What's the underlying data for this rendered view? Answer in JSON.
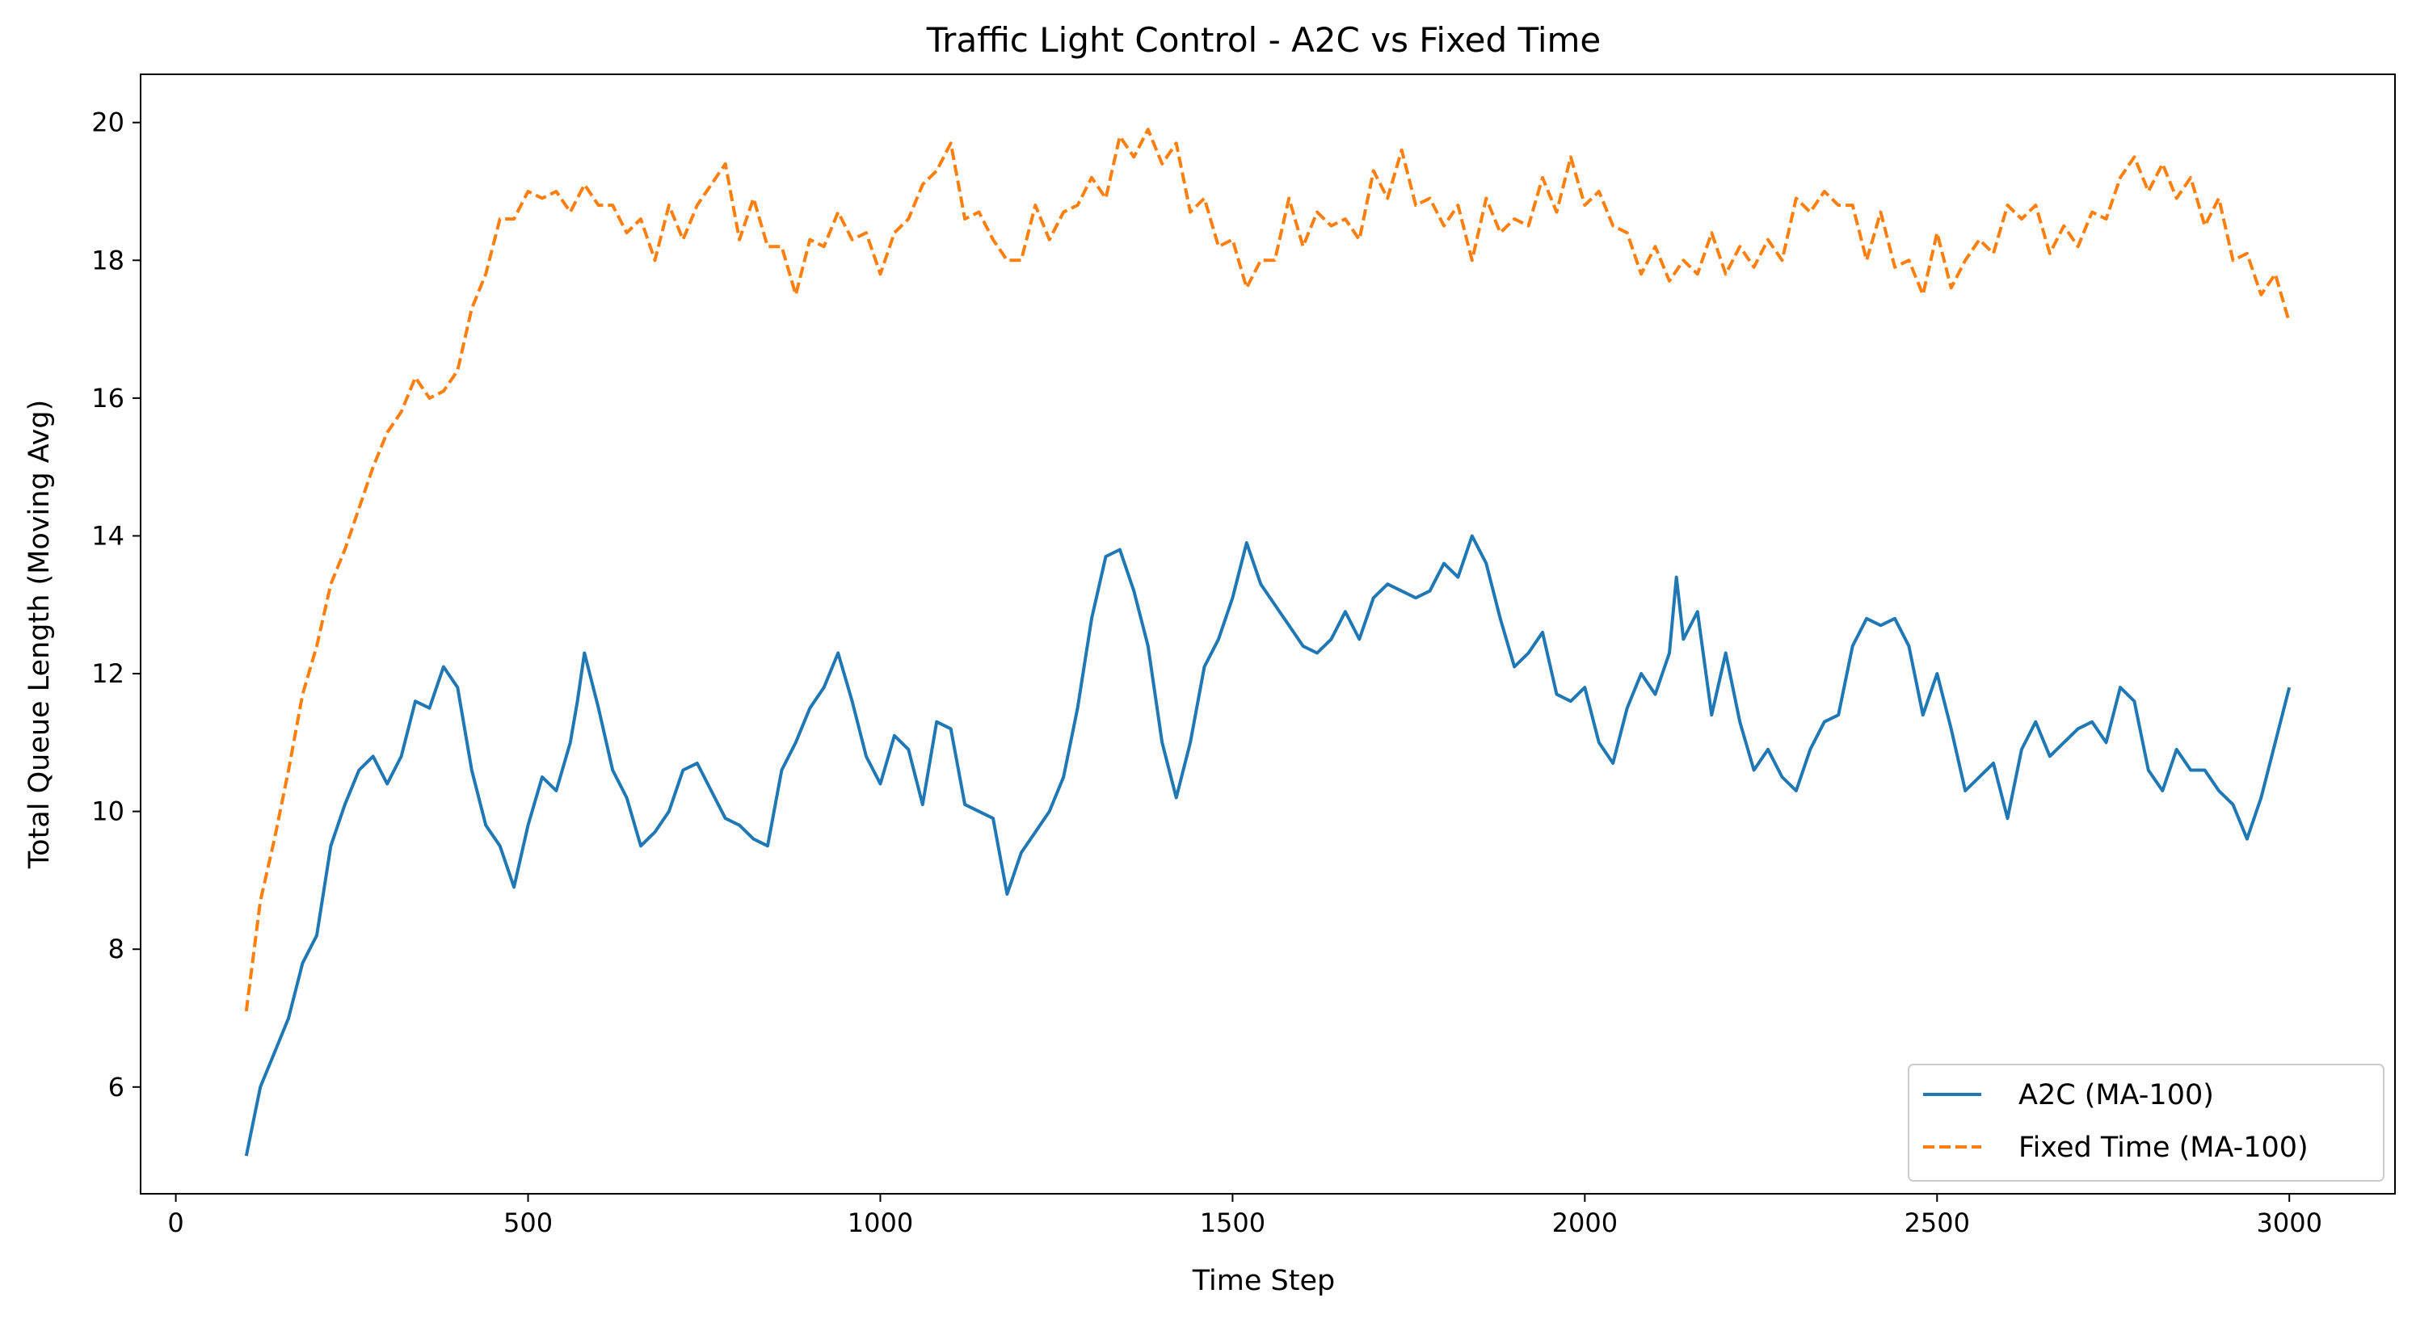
{
  "chart_data": {
    "type": "line",
    "title": "Traffic Light Control - A2C vs Fixed Time",
    "xlabel": "Time Step",
    "ylabel": "Total Queue Length (Moving Avg)",
    "xlim": [
      -50,
      3150
    ],
    "ylim": [
      4.45,
      20.7
    ],
    "xticks": [
      0,
      500,
      1000,
      1500,
      2000,
      2500,
      3000
    ],
    "yticks": [
      6,
      8,
      10,
      12,
      14,
      16,
      18,
      20
    ],
    "grid": false,
    "legend_position": "lower-right",
    "series": [
      {
        "name": "A2C (MA-100)",
        "color": "#1f77b4",
        "style": "solid",
        "points": [
          [
            100,
            5.0
          ],
          [
            120,
            6.0
          ],
          [
            140,
            6.5
          ],
          [
            160,
            7.0
          ],
          [
            180,
            7.8
          ],
          [
            200,
            8.2
          ],
          [
            220,
            9.5
          ],
          [
            240,
            10.1
          ],
          [
            260,
            10.6
          ],
          [
            280,
            10.8
          ],
          [
            300,
            10.4
          ],
          [
            320,
            10.8
          ],
          [
            340,
            11.6
          ],
          [
            360,
            11.5
          ],
          [
            380,
            12.1
          ],
          [
            400,
            11.8
          ],
          [
            420,
            10.6
          ],
          [
            440,
            9.8
          ],
          [
            460,
            9.5
          ],
          [
            480,
            8.9
          ],
          [
            500,
            9.8
          ],
          [
            520,
            10.5
          ],
          [
            540,
            10.3
          ],
          [
            560,
            11.0
          ],
          [
            570,
            11.6
          ],
          [
            580,
            12.3
          ],
          [
            600,
            11.5
          ],
          [
            620,
            10.6
          ],
          [
            640,
            10.2
          ],
          [
            660,
            9.5
          ],
          [
            680,
            9.7
          ],
          [
            700,
            10.0
          ],
          [
            720,
            10.6
          ],
          [
            740,
            10.7
          ],
          [
            760,
            10.3
          ],
          [
            780,
            9.9
          ],
          [
            800,
            9.8
          ],
          [
            820,
            9.6
          ],
          [
            840,
            9.5
          ],
          [
            860,
            10.6
          ],
          [
            880,
            11.0
          ],
          [
            900,
            11.5
          ],
          [
            920,
            11.8
          ],
          [
            940,
            12.3
          ],
          [
            960,
            11.6
          ],
          [
            980,
            10.8
          ],
          [
            1000,
            10.4
          ],
          [
            1020,
            11.1
          ],
          [
            1040,
            10.9
          ],
          [
            1060,
            10.1
          ],
          [
            1080,
            11.3
          ],
          [
            1100,
            11.2
          ],
          [
            1120,
            10.1
          ],
          [
            1140,
            10.0
          ],
          [
            1160,
            9.9
          ],
          [
            1180,
            8.8
          ],
          [
            1200,
            9.4
          ],
          [
            1220,
            9.7
          ],
          [
            1240,
            10.0
          ],
          [
            1260,
            10.5
          ],
          [
            1280,
            11.5
          ],
          [
            1300,
            12.8
          ],
          [
            1320,
            13.7
          ],
          [
            1340,
            13.8
          ],
          [
            1360,
            13.2
          ],
          [
            1380,
            12.4
          ],
          [
            1400,
            11.0
          ],
          [
            1420,
            10.2
          ],
          [
            1440,
            11.0
          ],
          [
            1460,
            12.1
          ],
          [
            1480,
            12.5
          ],
          [
            1500,
            13.1
          ],
          [
            1520,
            13.9
          ],
          [
            1540,
            13.3
          ],
          [
            1560,
            13.0
          ],
          [
            1580,
            12.7
          ],
          [
            1600,
            12.4
          ],
          [
            1620,
            12.3
          ],
          [
            1640,
            12.5
          ],
          [
            1660,
            12.9
          ],
          [
            1680,
            12.5
          ],
          [
            1700,
            13.1
          ],
          [
            1720,
            13.3
          ],
          [
            1740,
            13.2
          ],
          [
            1760,
            13.1
          ],
          [
            1780,
            13.2
          ],
          [
            1800,
            13.6
          ],
          [
            1820,
            13.4
          ],
          [
            1840,
            14.0
          ],
          [
            1860,
            13.6
          ],
          [
            1880,
            12.8
          ],
          [
            1900,
            12.1
          ],
          [
            1920,
            12.3
          ],
          [
            1940,
            12.6
          ],
          [
            1960,
            11.7
          ],
          [
            1980,
            11.6
          ],
          [
            2000,
            11.8
          ],
          [
            2020,
            11.0
          ],
          [
            2040,
            10.7
          ],
          [
            2060,
            11.5
          ],
          [
            2080,
            12.0
          ],
          [
            2100,
            11.7
          ],
          [
            2120,
            12.3
          ],
          [
            2130,
            13.4
          ],
          [
            2140,
            12.5
          ],
          [
            2160,
            12.9
          ],
          [
            2180,
            11.4
          ],
          [
            2200,
            12.3
          ],
          [
            2220,
            11.3
          ],
          [
            2240,
            10.6
          ],
          [
            2260,
            10.9
          ],
          [
            2280,
            10.5
          ],
          [
            2300,
            10.3
          ],
          [
            2320,
            10.9
          ],
          [
            2340,
            11.3
          ],
          [
            2360,
            11.4
          ],
          [
            2380,
            12.4
          ],
          [
            2400,
            12.8
          ],
          [
            2420,
            12.7
          ],
          [
            2440,
            12.8
          ],
          [
            2460,
            12.4
          ],
          [
            2480,
            11.4
          ],
          [
            2500,
            12.0
          ],
          [
            2520,
            11.2
          ],
          [
            2540,
            10.3
          ],
          [
            2560,
            10.5
          ],
          [
            2580,
            10.7
          ],
          [
            2600,
            9.9
          ],
          [
            2620,
            10.9
          ],
          [
            2640,
            11.3
          ],
          [
            2660,
            10.8
          ],
          [
            2680,
            11.0
          ],
          [
            2700,
            11.2
          ],
          [
            2720,
            11.3
          ],
          [
            2740,
            11.0
          ],
          [
            2760,
            11.8
          ],
          [
            2780,
            11.6
          ],
          [
            2800,
            10.6
          ],
          [
            2820,
            10.3
          ],
          [
            2840,
            10.9
          ],
          [
            2860,
            10.6
          ],
          [
            2880,
            10.6
          ],
          [
            2900,
            10.3
          ],
          [
            2920,
            10.1
          ],
          [
            2940,
            9.6
          ],
          [
            2960,
            10.2
          ],
          [
            2980,
            11.0
          ],
          [
            3000,
            11.8
          ]
        ]
      },
      {
        "name": "Fixed Time (MA-100)",
        "color": "#ff7f0e",
        "style": "dashed",
        "points": [
          [
            100,
            7.1
          ],
          [
            120,
            8.7
          ],
          [
            140,
            9.6
          ],
          [
            160,
            10.6
          ],
          [
            180,
            11.7
          ],
          [
            200,
            12.4
          ],
          [
            220,
            13.3
          ],
          [
            240,
            13.8
          ],
          [
            260,
            14.4
          ],
          [
            280,
            15.0
          ],
          [
            300,
            15.5
          ],
          [
            320,
            15.8
          ],
          [
            340,
            16.3
          ],
          [
            360,
            16.0
          ],
          [
            380,
            16.1
          ],
          [
            400,
            16.4
          ],
          [
            420,
            17.3
          ],
          [
            440,
            17.8
          ],
          [
            460,
            18.6
          ],
          [
            480,
            18.6
          ],
          [
            500,
            19.0
          ],
          [
            520,
            18.9
          ],
          [
            540,
            19.0
          ],
          [
            560,
            18.7
          ],
          [
            580,
            19.1
          ],
          [
            600,
            18.8
          ],
          [
            620,
            18.8
          ],
          [
            640,
            18.4
          ],
          [
            660,
            18.6
          ],
          [
            680,
            18.0
          ],
          [
            700,
            18.8
          ],
          [
            720,
            18.3
          ],
          [
            740,
            18.8
          ],
          [
            760,
            19.1
          ],
          [
            780,
            19.4
          ],
          [
            800,
            18.3
          ],
          [
            820,
            18.9
          ],
          [
            840,
            18.2
          ],
          [
            860,
            18.2
          ],
          [
            880,
            17.5
          ],
          [
            900,
            18.3
          ],
          [
            920,
            18.2
          ],
          [
            940,
            18.7
          ],
          [
            960,
            18.3
          ],
          [
            980,
            18.4
          ],
          [
            1000,
            17.8
          ],
          [
            1020,
            18.4
          ],
          [
            1040,
            18.6
          ],
          [
            1060,
            19.1
          ],
          [
            1080,
            19.3
          ],
          [
            1100,
            19.7
          ],
          [
            1120,
            18.6
          ],
          [
            1140,
            18.7
          ],
          [
            1160,
            18.3
          ],
          [
            1180,
            18.0
          ],
          [
            1200,
            18.0
          ],
          [
            1220,
            18.8
          ],
          [
            1240,
            18.3
          ],
          [
            1260,
            18.7
          ],
          [
            1280,
            18.8
          ],
          [
            1300,
            19.2
          ],
          [
            1320,
            18.9
          ],
          [
            1340,
            19.8
          ],
          [
            1360,
            19.5
          ],
          [
            1380,
            19.9
          ],
          [
            1400,
            19.4
          ],
          [
            1420,
            19.7
          ],
          [
            1440,
            18.7
          ],
          [
            1460,
            18.9
          ],
          [
            1480,
            18.2
          ],
          [
            1500,
            18.3
          ],
          [
            1520,
            17.6
          ],
          [
            1540,
            18.0
          ],
          [
            1560,
            18.0
          ],
          [
            1580,
            18.9
          ],
          [
            1600,
            18.2
          ],
          [
            1620,
            18.7
          ],
          [
            1640,
            18.5
          ],
          [
            1660,
            18.6
          ],
          [
            1680,
            18.3
          ],
          [
            1700,
            19.3
          ],
          [
            1720,
            18.9
          ],
          [
            1740,
            19.6
          ],
          [
            1760,
            18.8
          ],
          [
            1780,
            18.9
          ],
          [
            1800,
            18.5
          ],
          [
            1820,
            18.8
          ],
          [
            1840,
            18.0
          ],
          [
            1860,
            18.9
          ],
          [
            1880,
            18.4
          ],
          [
            1900,
            18.6
          ],
          [
            1920,
            18.5
          ],
          [
            1940,
            19.2
          ],
          [
            1960,
            18.7
          ],
          [
            1980,
            19.5
          ],
          [
            2000,
            18.8
          ],
          [
            2020,
            19.0
          ],
          [
            2040,
            18.5
          ],
          [
            2060,
            18.4
          ],
          [
            2080,
            17.8
          ],
          [
            2100,
            18.2
          ],
          [
            2120,
            17.7
          ],
          [
            2140,
            18.0
          ],
          [
            2160,
            17.8
          ],
          [
            2180,
            18.4
          ],
          [
            2200,
            17.8
          ],
          [
            2220,
            18.2
          ],
          [
            2240,
            17.9
          ],
          [
            2260,
            18.3
          ],
          [
            2280,
            18.0
          ],
          [
            2300,
            18.9
          ],
          [
            2320,
            18.7
          ],
          [
            2340,
            19.0
          ],
          [
            2360,
            18.8
          ],
          [
            2380,
            18.8
          ],
          [
            2400,
            18.0
          ],
          [
            2420,
            18.7
          ],
          [
            2440,
            17.9
          ],
          [
            2460,
            18.0
          ],
          [
            2480,
            17.5
          ],
          [
            2500,
            18.4
          ],
          [
            2520,
            17.6
          ],
          [
            2540,
            18.0
          ],
          [
            2560,
            18.3
          ],
          [
            2580,
            18.1
          ],
          [
            2600,
            18.8
          ],
          [
            2620,
            18.6
          ],
          [
            2640,
            18.8
          ],
          [
            2660,
            18.1
          ],
          [
            2680,
            18.5
          ],
          [
            2700,
            18.2
          ],
          [
            2720,
            18.7
          ],
          [
            2740,
            18.6
          ],
          [
            2760,
            19.2
          ],
          [
            2780,
            19.5
          ],
          [
            2800,
            19.0
          ],
          [
            2820,
            19.4
          ],
          [
            2840,
            18.9
          ],
          [
            2860,
            19.2
          ],
          [
            2880,
            18.5
          ],
          [
            2900,
            18.9
          ],
          [
            2920,
            18.0
          ],
          [
            2940,
            18.1
          ],
          [
            2960,
            17.5
          ],
          [
            2980,
            17.8
          ],
          [
            3000,
            17.1
          ]
        ]
      }
    ]
  }
}
